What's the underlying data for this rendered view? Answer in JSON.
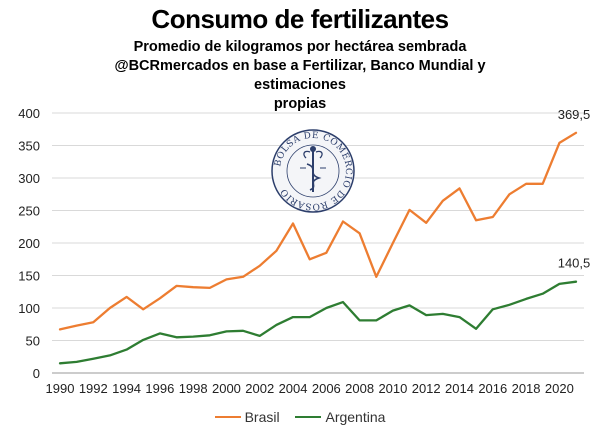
{
  "chart_data": {
    "type": "line",
    "title": "Consumo de fertilizantes",
    "subtitle_lines": [
      "Promedio de kilogramos por hectárea sembrada",
      "@BCRmercados en base a Fertilizar, Banco Mundial y estimaciones",
      "propias"
    ],
    "x": [
      1990,
      1991,
      1992,
      1993,
      1994,
      1995,
      1996,
      1997,
      1998,
      1999,
      2000,
      2001,
      2002,
      2003,
      2004,
      2005,
      2006,
      2007,
      2008,
      2009,
      2010,
      2011,
      2012,
      2013,
      2014,
      2015,
      2016,
      2017,
      2018,
      2019,
      2020,
      2021
    ],
    "x_ticks": [
      "1990",
      "1992",
      "1994",
      "1996",
      "1998",
      "2000",
      "2002",
      "2004",
      "2006",
      "2008",
      "2010",
      "2012",
      "2014",
      "2016",
      "2018",
      "2020"
    ],
    "y_ticks": [
      "0",
      "50",
      "100",
      "150",
      "200",
      "250",
      "300",
      "350",
      "400"
    ],
    "ylim": [
      0,
      400
    ],
    "grid": "horizontal",
    "legend_position": "bottom",
    "series": [
      {
        "name": "Brasil",
        "color": "#ED7D31",
        "values": [
          67,
          73,
          78,
          100,
          117,
          98,
          115,
          134,
          132,
          131,
          144,
          148,
          165,
          188,
          230,
          175,
          185,
          233,
          215,
          148,
          200,
          251,
          231,
          265,
          284,
          235,
          240,
          275,
          291,
          291,
          354,
          369.5
        ],
        "end_label": "369,5"
      },
      {
        "name": "Argentina",
        "color": "#2E7D32",
        "values": [
          15,
          17,
          22,
          27,
          36,
          51,
          61,
          55,
          56,
          58,
          64,
          65,
          57,
          74,
          86,
          86,
          100,
          109,
          81,
          81,
          96,
          104,
          89,
          91,
          86,
          68,
          98,
          105,
          114,
          122,
          137,
          140.5
        ],
        "end_label": "140,5"
      }
    ],
    "watermark_text": "BOLSA DE COMERCIO DE ROSARIO"
  }
}
